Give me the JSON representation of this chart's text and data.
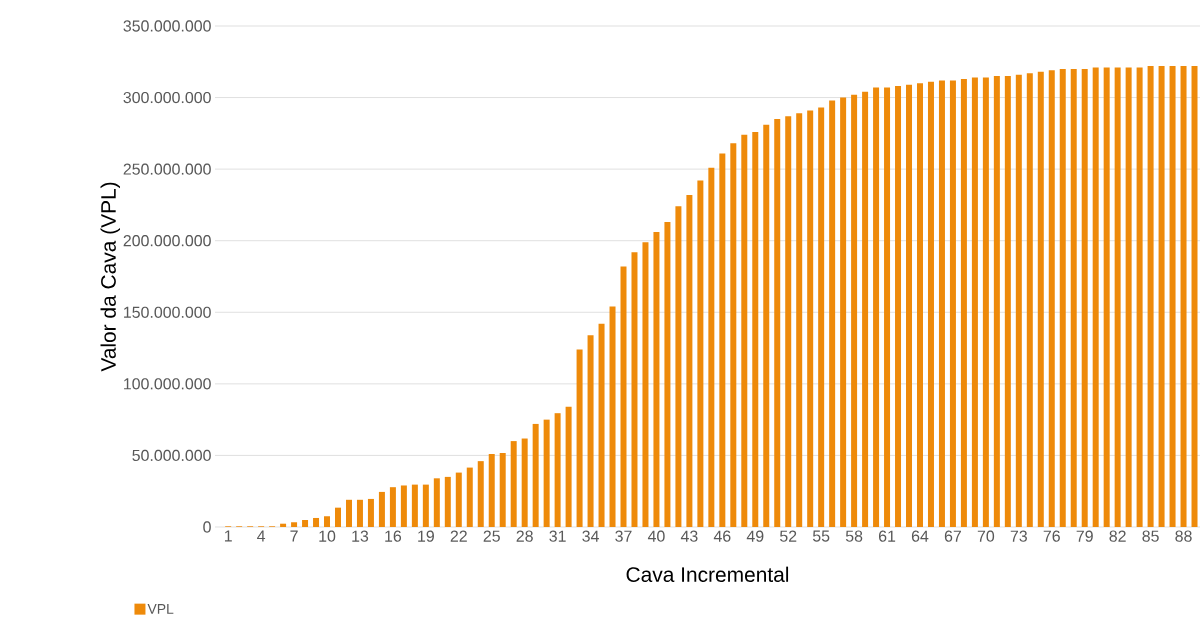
{
  "chart_data": {
    "type": "bar",
    "xlabel": "Cava Incremental",
    "ylabel": "Valor da Cava (VPL)",
    "categories": [
      "1",
      null,
      null,
      "4",
      null,
      null,
      "7",
      null,
      null,
      "10",
      null,
      null,
      "13",
      null,
      null,
      "16",
      null,
      null,
      "19",
      null,
      null,
      "22",
      null,
      null,
      "25",
      null,
      null,
      "28",
      null,
      null,
      "31",
      null,
      null,
      "34",
      null,
      null,
      "37",
      null,
      null,
      "40",
      null,
      null,
      "43",
      null,
      null,
      "46",
      null,
      null,
      "49",
      null,
      null,
      "52",
      null,
      null,
      "55",
      null,
      null,
      "58",
      null,
      null,
      "61",
      null,
      null,
      "64",
      null,
      null,
      "67",
      null,
      null,
      "70",
      null,
      null,
      "73",
      null,
      null,
      "76",
      null,
      null,
      "79",
      null,
      null,
      "82",
      null,
      null,
      "85",
      null,
      null,
      "88",
      null
    ],
    "series": [
      {
        "name": "VPL",
        "color": "#ee8a0a",
        "values": [
          500000,
          500000,
          500000,
          500000,
          500000,
          2300000,
          3300000,
          4900000,
          6300000,
          7500000,
          13500000,
          19000000,
          19000000,
          19600000,
          24500000,
          27800000,
          29000000,
          29600000,
          29600000,
          34000000,
          35000000,
          38000000,
          41500000,
          46000000,
          51000000,
          51700000,
          60000000,
          61800000,
          72000000,
          75000000,
          79500000,
          84000000,
          124000000,
          134000000,
          142000000,
          154000000,
          182000000,
          192000000,
          199000000,
          206000000,
          213000000,
          224000000,
          232000000,
          242000000,
          251000000,
          261000000,
          268000000,
          274000000,
          276000000,
          281000000,
          285000000,
          287000000,
          289000000,
          291000000,
          293000000,
          298000000,
          300000000,
          302000000,
          304000000,
          307000000,
          307000000,
          308000000,
          309000000,
          310000000,
          311000000,
          312000000,
          312000000,
          313000000,
          314000000,
          314000000,
          315000000,
          315000000,
          316000000,
          317000000,
          318000000,
          319000000,
          320000000,
          320000000,
          320000000,
          321000000,
          321000000,
          321000000,
          321000000,
          321000000,
          322000000,
          322000000,
          322000000,
          322000000,
          322000000
        ]
      }
    ],
    "ylim": [
      0,
      350000000
    ],
    "yticks": [
      0,
      {
        "value": 50000000,
        "label": "50.000.000"
      },
      {
        "value": 100000000,
        "label": "100.000.000"
      },
      {
        "value": 150000000,
        "label": "150.000.000"
      },
      {
        "value": 200000000,
        "label": "200.000.000"
      },
      {
        "value": 250000000,
        "label": "250.000.000"
      },
      {
        "value": 300000000,
        "label": "300.000.000"
      },
      {
        "value": 350000000,
        "label": "350.000.000"
      }
    ],
    "grid": "y",
    "legend": "bottom left"
  }
}
